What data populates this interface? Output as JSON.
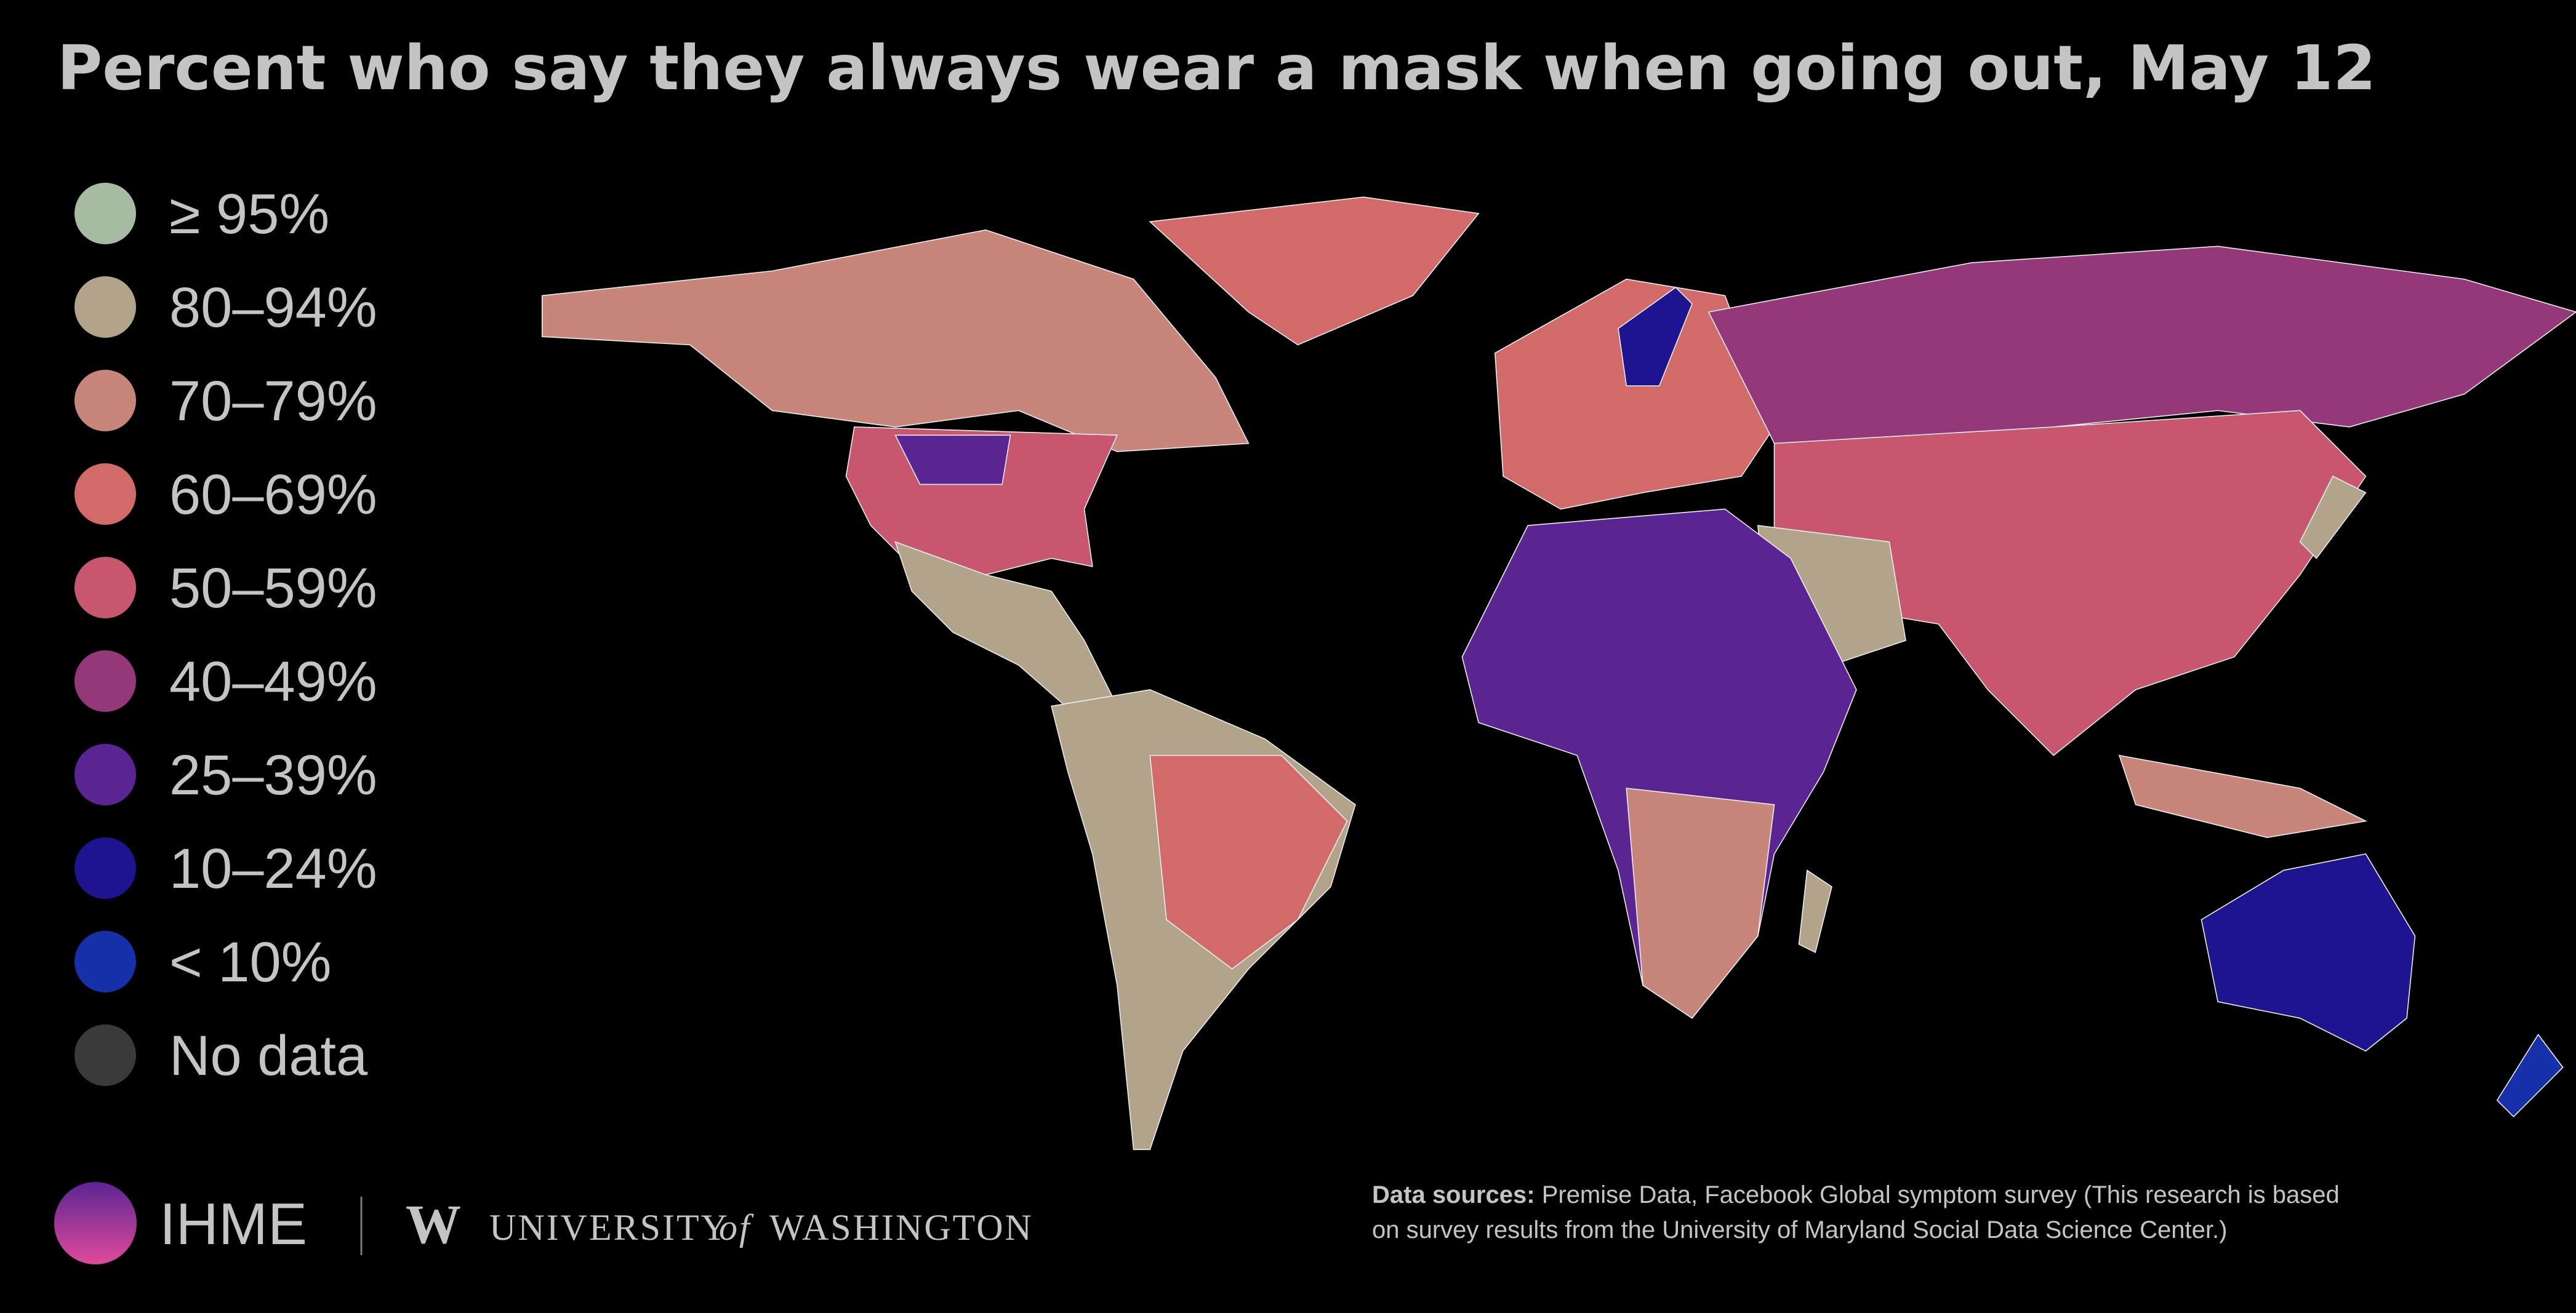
{
  "title": "Percent who say they always wear a mask when going out, May 12",
  "legend": [
    {
      "label": "≥ 95%",
      "color": "#a7bba3"
    },
    {
      "label": "80–94%",
      "color": "#b2a48a"
    },
    {
      "label": "70–79%",
      "color": "#c8857a"
    },
    {
      "label": "60–69%",
      "color": "#d26a6a"
    },
    {
      "label": "50–59%",
      "color": "#c9566f"
    },
    {
      "label": "40–49%",
      "color": "#94387a"
    },
    {
      "label": "25–39%",
      "color": "#5a2592"
    },
    {
      "label": "10–24%",
      "color": "#1d1490"
    },
    {
      "label": "< 10%",
      "color": "#1530a8"
    },
    {
      "label": "No data",
      "color": "#3a3a3a"
    }
  ],
  "logos": {
    "ihme": "IHME",
    "uw_mark": "W",
    "uw_university": "UNIVERSITY",
    "uw_of": "of",
    "uw_washington": "WASHINGTON"
  },
  "sources": {
    "label": "Data sources:",
    "line1": "Premise Data, Facebook Global symptom survey (This research is based",
    "line2": "on survey results from the University of Maryland Social Data Science Center.)"
  }
}
